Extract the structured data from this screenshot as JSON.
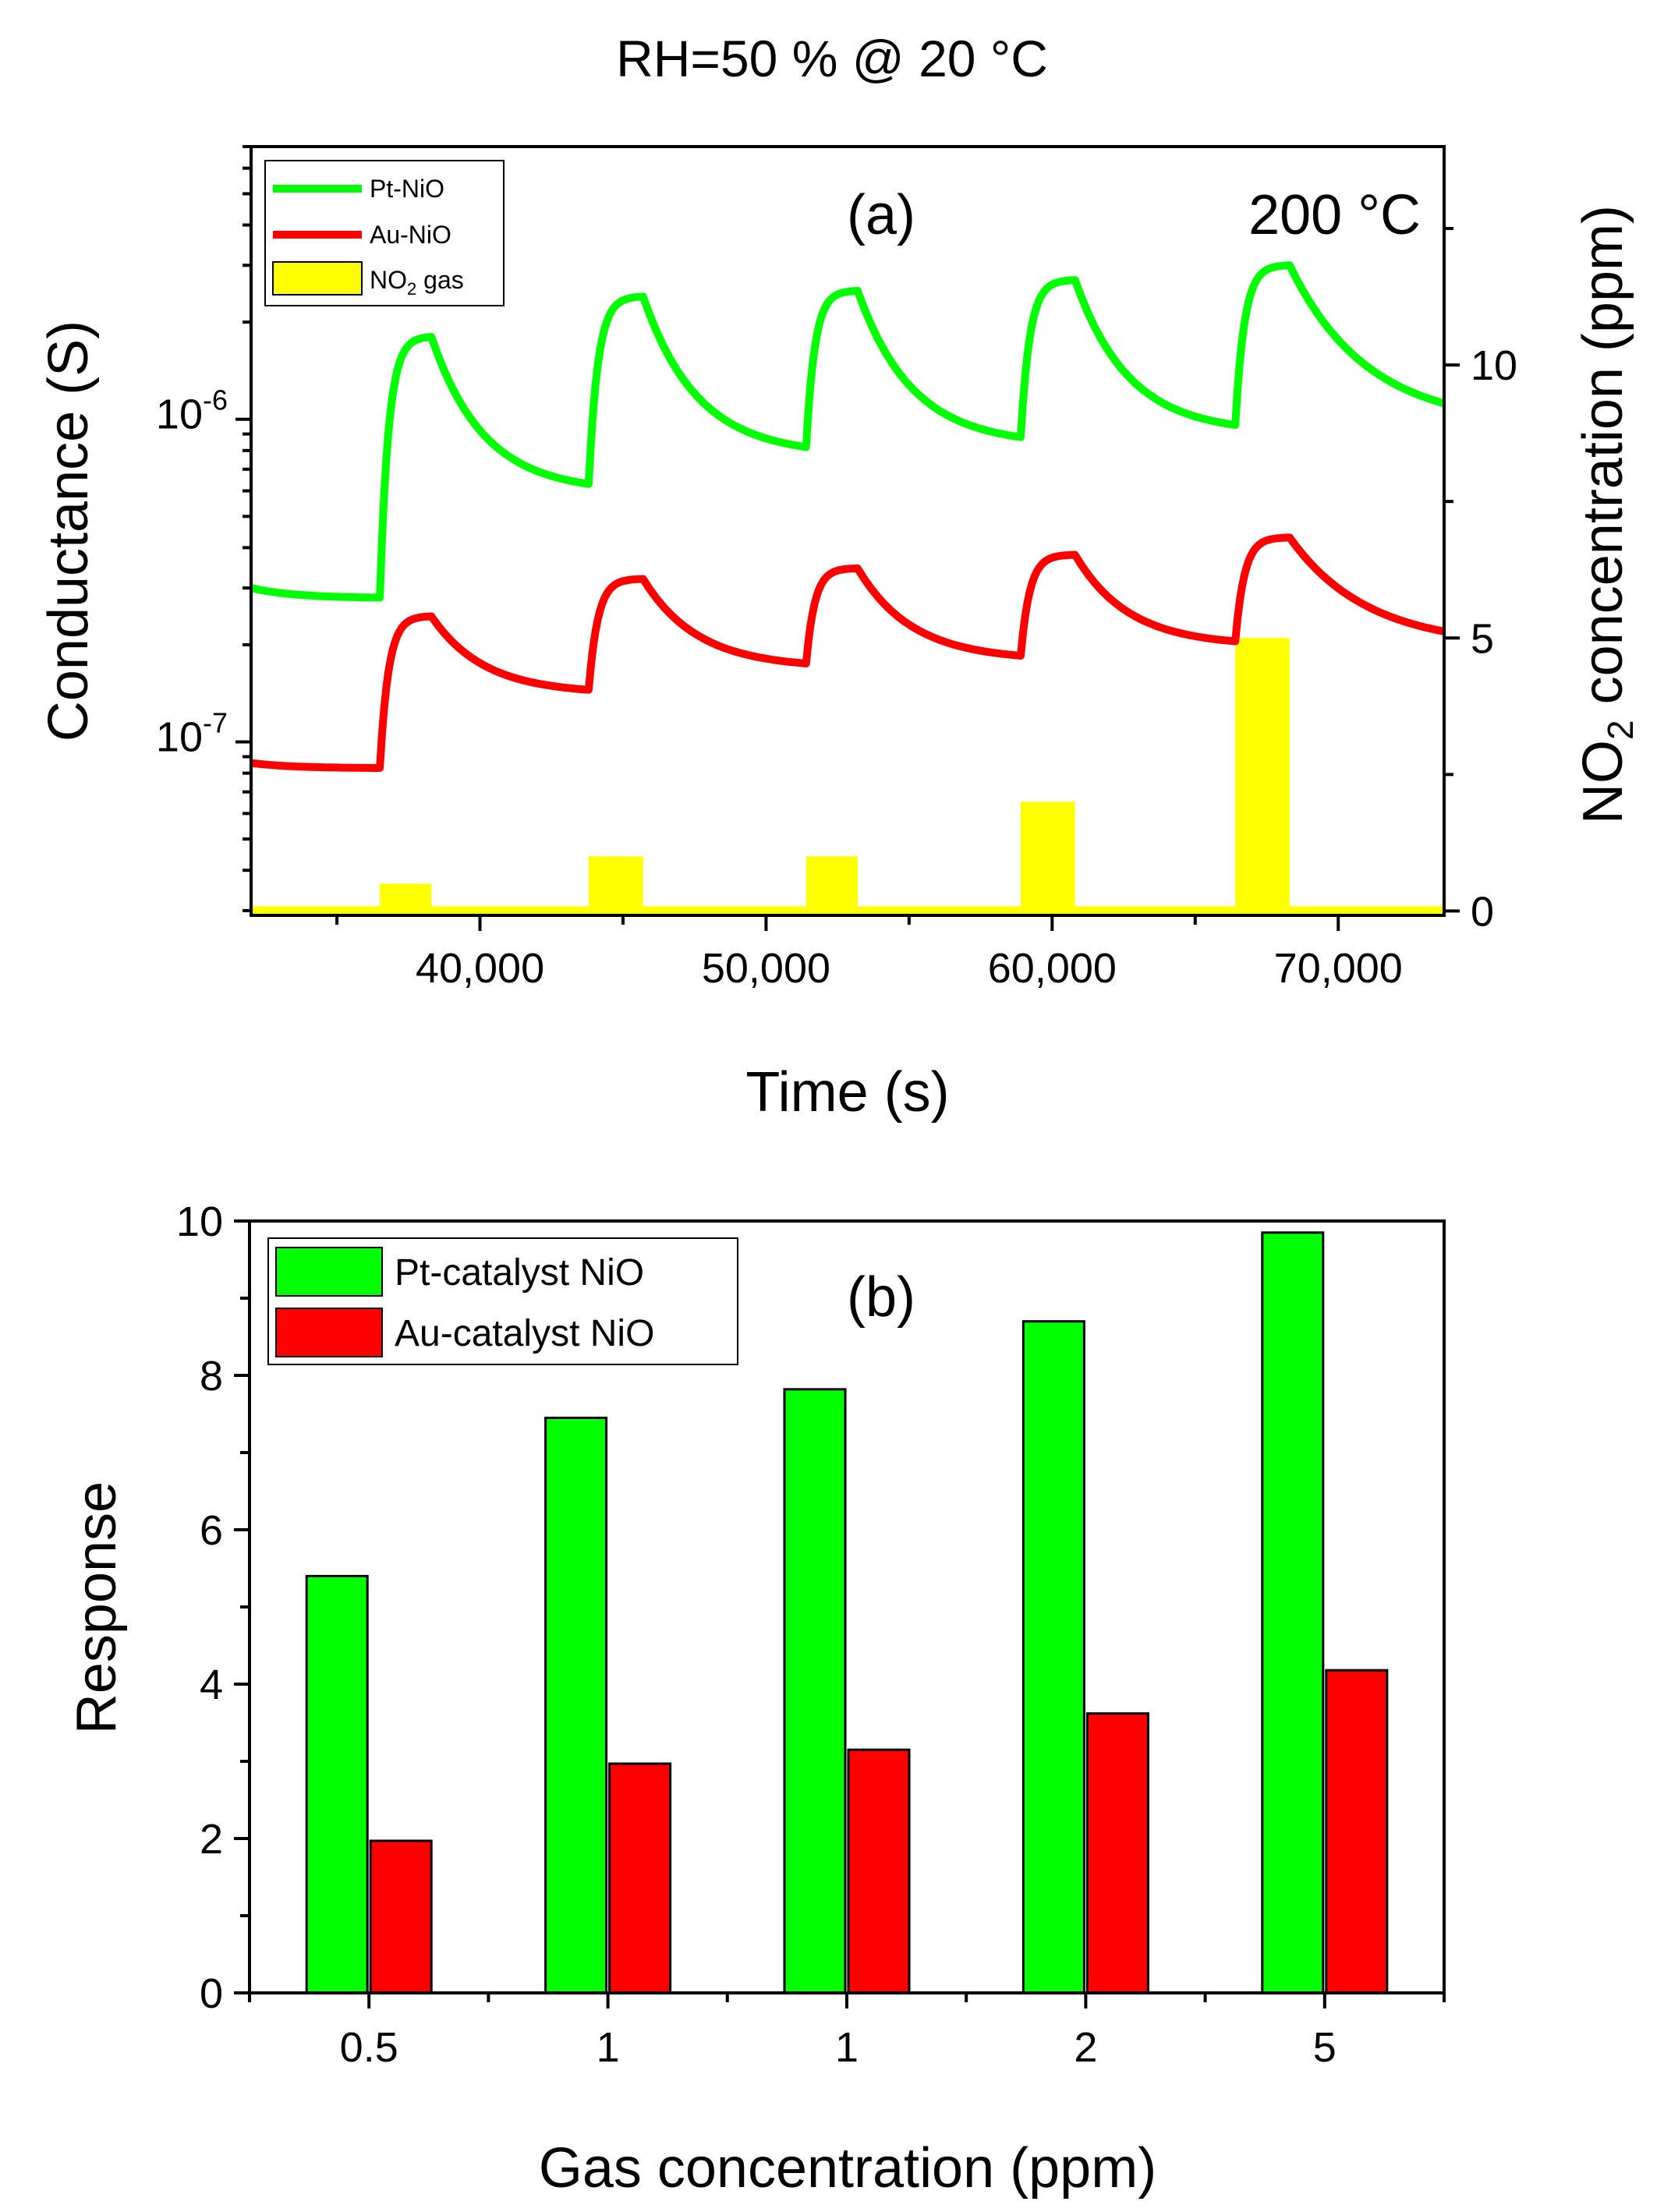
{
  "figure_title": "RH=50 % @ 20 °C",
  "colors": {
    "pt": "#00ff00",
    "au": "#ff0000",
    "gas": "#ffff00",
    "edge": "#000000"
  },
  "chart_data": [
    {
      "type": "line",
      "panel_label": "(a)",
      "annotation": "200 °C",
      "xlabel": "Time (s)",
      "ylabel": "Conductance (S)",
      "ylabel2": {
        "prefix": "NO",
        "sub": "2",
        "rest": " concentration (ppm)"
      },
      "xlim": [
        32000,
        73700
      ],
      "ylim": [
        2.9e-08,
        7e-06
      ],
      "yscale": "log",
      "ylim2": [
        -0.08,
        14
      ],
      "xticks": [
        40000,
        50000,
        60000,
        70000
      ],
      "xtick_labels": [
        "40,000",
        "50,000",
        "60,000",
        "70,000"
      ],
      "yticks": [
        1e-07,
        1e-06
      ],
      "ytick_labels": [
        {
          "base": "10",
          "exp": "-7"
        },
        {
          "base": "10",
          "exp": "-6"
        }
      ],
      "yticks2": [
        0,
        5,
        10
      ],
      "ytick_labels2": [
        "0",
        "5",
        "10"
      ],
      "legend": [
        {
          "label": "Pt-NiO",
          "kind": "line",
          "color": "#00ff00"
        },
        {
          "label": "Au-NiO",
          "kind": "line",
          "color": "#ff0000"
        },
        {
          "label": {
            "prefix": "NO",
            "sub": "2",
            "rest": " gas"
          },
          "kind": "bar",
          "color": "#ffff00"
        }
      ],
      "pulses": [
        {
          "start": 36500,
          "end": 38300,
          "ppm": 0.5
        },
        {
          "start": 43800,
          "end": 45700,
          "ppm": 1
        },
        {
          "start": 51400,
          "end": 53200,
          "ppm": 1
        },
        {
          "start": 58900,
          "end": 60800,
          "ppm": 2
        },
        {
          "start": 66400,
          "end": 68300,
          "ppm": 5
        }
      ],
      "series": [
        {
          "name": "Pt-NiO",
          "color": "#00ff00",
          "baseline_start": 3e-07,
          "peaks": [
            1.8e-06,
            2.4e-06,
            2.5e-06,
            2.7e-06,
            3e-06
          ],
          "troughs": [
            2.8e-07,
            6.3e-07,
            8.2e-07,
            8.8e-07,
            9.6e-07
          ],
          "end_value": 1.12e-06
        },
        {
          "name": "Au-NiO",
          "color": "#ff0000",
          "baseline_start": 8.6e-08,
          "peaks": [
            2.45e-07,
            3.2e-07,
            3.45e-07,
            3.8e-07,
            4.3e-07
          ],
          "troughs": [
            8.3e-08,
            1.45e-07,
            1.75e-07,
            1.85e-07,
            2.05e-07
          ],
          "end_value": 2.2e-07
        }
      ]
    },
    {
      "type": "bar",
      "panel_label": "(b)",
      "xlabel": "Gas concentration (ppm)",
      "ylabel": "Response",
      "ylim": [
        0,
        10
      ],
      "yticks": [
        0,
        2,
        4,
        6,
        8,
        10
      ],
      "ytick_labels": [
        "0",
        "2",
        "4",
        "6",
        "8",
        "10"
      ],
      "categories": [
        "0.5",
        "1",
        "1",
        "2",
        "5"
      ],
      "series": [
        {
          "name": "Pt-catalyst NiO",
          "color": "#00ff00",
          "values": [
            5.4,
            7.45,
            7.82,
            8.7,
            9.85
          ]
        },
        {
          "name": "Au-catalyst NiO",
          "color": "#ff0000",
          "values": [
            1.97,
            2.97,
            3.15,
            3.62,
            4.18
          ]
        }
      ]
    }
  ]
}
